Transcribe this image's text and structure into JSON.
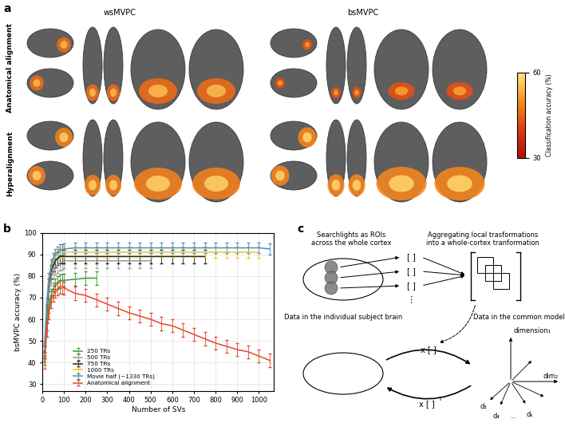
{
  "panel_labels": [
    "a",
    "b",
    "c"
  ],
  "panel_a": {
    "columns": [
      "wsMVPC",
      "bsMVPC"
    ],
    "rows": [
      "Anatomical alignment",
      "Hyperalignment"
    ],
    "colorbar": {
      "label": "Classification accuracy (%)",
      "range": [
        30,
        60
      ],
      "ticks": [
        30,
        60
      ]
    }
  },
  "chart_data": {
    "type": "line",
    "x_label": "Number of SVs",
    "y_label": "bsMVPC accuracy (%)",
    "xlim": [
      0,
      1070
    ],
    "xticks": [
      0,
      100,
      200,
      300,
      400,
      500,
      600,
      700,
      800,
      900,
      1000
    ],
    "ylim": [
      27,
      100
    ],
    "yticks": [
      30,
      40,
      50,
      60,
      70,
      80,
      90,
      100
    ],
    "grid": true,
    "legend": "lower left",
    "series": [
      {
        "name": "250 TRs",
        "color": "#3a9a3a",
        "x": [
          10,
          20,
          30,
          40,
          50,
          60,
          70,
          80,
          90,
          100,
          150,
          200,
          250
        ],
        "values": [
          42,
          58,
          66,
          71,
          74,
          76,
          77,
          77.5,
          78,
          78,
          78.5,
          79,
          79
        ],
        "errors": [
          3,
          3,
          3,
          3,
          3,
          3,
          3,
          3,
          3,
          3,
          3,
          3,
          3
        ]
      },
      {
        "name": "500 TRs",
        "color": "#9a9a9a",
        "x": [
          10,
          20,
          30,
          40,
          50,
          60,
          70,
          80,
          90,
          100,
          150,
          200,
          250,
          300,
          350,
          400,
          450,
          500
        ],
        "values": [
          44,
          62,
          73,
          79,
          82,
          84,
          85,
          86,
          86.5,
          87,
          87,
          87,
          87,
          87,
          87,
          87,
          87,
          87
        ],
        "errors": [
          3.5,
          3.5,
          3.5,
          3.5,
          3.5,
          3.5,
          3.5,
          3.5,
          3.5,
          3.5,
          3.5,
          3.5,
          3.5,
          3.5,
          3.5,
          3.5,
          3.5,
          3.5
        ]
      },
      {
        "name": "750 TRs",
        "color": "#222222",
        "x": [
          10,
          20,
          30,
          40,
          50,
          60,
          70,
          80,
          90,
          100,
          150,
          200,
          250,
          300,
          350,
          400,
          450,
          500,
          550,
          600,
          650,
          700,
          750
        ],
        "values": [
          45,
          64,
          76,
          82,
          85,
          87,
          88,
          89,
          89,
          89,
          89,
          89,
          89,
          89,
          89,
          89,
          89,
          89,
          89,
          89,
          89,
          89,
          89
        ],
        "errors": [
          3,
          3,
          3,
          3,
          3,
          3,
          3,
          3,
          3,
          3,
          3,
          3,
          3,
          3,
          3,
          3,
          3,
          3,
          3,
          3,
          3,
          3,
          3
        ]
      },
      {
        "name": "1000 TRs",
        "color": "#f2c230",
        "x": [
          10,
          20,
          30,
          40,
          50,
          60,
          70,
          80,
          90,
          100,
          150,
          200,
          250,
          300,
          350,
          400,
          450,
          500,
          550,
          600,
          650,
          700,
          750,
          800,
          850,
          900,
          950,
          1000
        ],
        "values": [
          46,
          66,
          78,
          84,
          87,
          89,
          90,
          90.5,
          91,
          91,
          91,
          91,
          91,
          91,
          91,
          91,
          91,
          91,
          91,
          91,
          91,
          91,
          91,
          91,
          91,
          91,
          91,
          91
        ],
        "errors": [
          2.5,
          2.5,
          2.5,
          2.5,
          2.5,
          2.5,
          2.5,
          2.5,
          2.5,
          2.5,
          2.5,
          2.5,
          2.5,
          2.5,
          2.5,
          2.5,
          2.5,
          2.5,
          2.5,
          2.5,
          2.5,
          2.5,
          2.5,
          2.5,
          2.5,
          2.5,
          2.5,
          2.5
        ]
      },
      {
        "name": "Movie half (~1330 TRs)",
        "color": "#4a90c8",
        "x": [
          10,
          20,
          30,
          40,
          50,
          60,
          70,
          80,
          90,
          100,
          150,
          200,
          250,
          300,
          350,
          400,
          450,
          500,
          550,
          600,
          650,
          700,
          750,
          800,
          850,
          900,
          950,
          1000,
          1050
        ],
        "values": [
          47,
          67,
          79,
          85,
          88,
          90,
          91,
          92,
          92,
          92.5,
          93,
          93,
          93,
          93,
          93,
          93,
          93,
          93,
          93,
          93,
          93,
          93,
          93,
          93,
          93,
          93,
          93,
          93,
          92.5
        ],
        "errors": [
          2.5,
          2.5,
          2.5,
          2.5,
          2.5,
          2.5,
          2.5,
          2.5,
          2.5,
          2.5,
          2.5,
          2.5,
          2.5,
          2.5,
          2.5,
          2.5,
          2.5,
          2.5,
          2.5,
          2.5,
          2.5,
          2.5,
          2.5,
          2.5,
          2.5,
          2.5,
          2.5,
          2.5,
          2.5
        ]
      },
      {
        "name": "Anatomical alignment",
        "color": "#e8452c",
        "x": [
          10,
          20,
          30,
          40,
          50,
          60,
          70,
          80,
          90,
          100,
          150,
          200,
          250,
          300,
          350,
          400,
          450,
          500,
          550,
          600,
          650,
          700,
          750,
          800,
          850,
          900,
          950,
          1000,
          1050
        ],
        "values": [
          40,
          55,
          63,
          68,
          71,
          73,
          74,
          75,
          75,
          74.5,
          72,
          71,
          69,
          67,
          65,
          63,
          61.5,
          60,
          58,
          57,
          55,
          53,
          51,
          49,
          47.5,
          46,
          45,
          43,
          41
        ],
        "errors": [
          3,
          3,
          3,
          3,
          3,
          3,
          3,
          3,
          3,
          3,
          3,
          3,
          3,
          3,
          3,
          3,
          3,
          3,
          3,
          3,
          3,
          3,
          3,
          3,
          3,
          3,
          3,
          3,
          3
        ]
      }
    ]
  },
  "panel_c": {
    "title_left": "Searchlights as ROIs\nacross the whole cortex",
    "title_right": "Aggregating local trasformations\ninto a whole-cortex tranformation",
    "label_left": "Data in the individual subject brain",
    "label_right": "Data in the common model",
    "bracket": "[ ]",
    "vdots": "⋮",
    "forward": "x [ ]",
    "backward": "x [ ]",
    "transpose_mark": "T",
    "dimensions": [
      "dimension₁",
      "dim₂"
    ],
    "vectors": [
      "d₃",
      "d₄",
      "dₖ"
    ],
    "ellipsis": "..."
  }
}
